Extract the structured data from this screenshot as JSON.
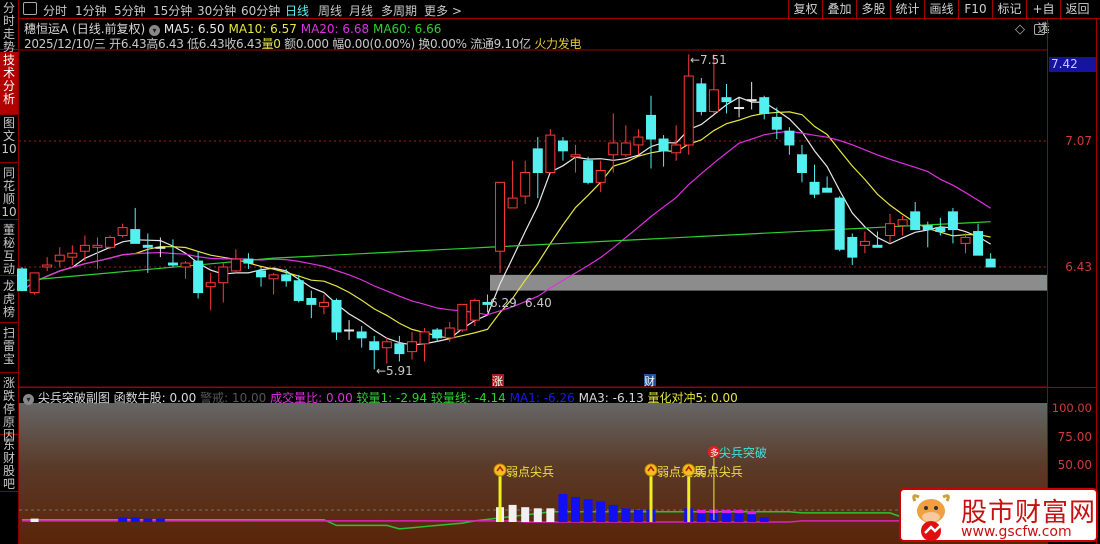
{
  "sidebar": {
    "items": [
      {
        "label": "分时走势",
        "active": false
      },
      {
        "label": "技术分析",
        "active": true
      },
      {
        "label": "图文10",
        "active": false
      },
      {
        "label": "同花顺10",
        "active": false
      },
      {
        "label": "董秘互动",
        "active": false
      },
      {
        "label": "龙虎榜",
        "active": false
      },
      {
        "label": "扫雷宝",
        "active": false
      },
      {
        "label": "涨跌停原因",
        "active": false
      },
      {
        "label": "东财股吧",
        "active": false
      }
    ]
  },
  "toolbar": {
    "periods": [
      "分时",
      "1分钟",
      "5分钟",
      "15分钟",
      "30分钟",
      "60分钟",
      "日线",
      "周线",
      "月线",
      "多周期",
      "更多 >"
    ],
    "active_period": "日线",
    "right_buttons": [
      "复权",
      "叠加",
      "多股",
      "统计",
      "画线",
      "F10",
      "标记",
      "+自选",
      "返回"
    ]
  },
  "header": {
    "stock": "穗恒运A (日线.前复权)",
    "ma5": "MA5: 6.50",
    "ma10": "MA10: 6.57",
    "ma20": "MA20: 6.68",
    "ma60": "MA60: 6.66",
    "date": "2025/12/10/三",
    "open": "开6.43",
    "high": "高6.43",
    "low": "低6.43",
    "close": "收6.43",
    "vol_label": "量",
    "vol_value": "0",
    "amount": "额0.000",
    "range": "幅0.00(0.00%)",
    "turnover": "换0.00%",
    "float": "流通9.10亿",
    "concept": "火力发电"
  },
  "colors": {
    "up": "#ff3a3a",
    "down": "#54f0f0",
    "ma5": "#e8e8e8",
    "ma10": "#e6e640",
    "ma20": "#e030e0",
    "ma60": "#30d030"
  },
  "price_axis": {
    "current": "7.42",
    "levels": [
      "7.07",
      "6.43"
    ]
  },
  "annotations": {
    "low": "5.91",
    "high": "7.51",
    "a": "6.29",
    "b": "6.40",
    "mark_zhang": "涨",
    "mark_cai": "财"
  },
  "chart_data": {
    "type": "candlestick",
    "price_axis_labels": [
      7.42,
      7.07,
      6.43
    ],
    "ohlc": [
      [
        6.42,
        6.43,
        6.31,
        6.31
      ],
      [
        6.3,
        6.4,
        6.29,
        6.4
      ],
      [
        6.43,
        6.48,
        6.41,
        6.44
      ],
      [
        6.46,
        6.53,
        6.43,
        6.49
      ],
      [
        6.48,
        6.54,
        6.44,
        6.5
      ],
      [
        6.51,
        6.59,
        6.46,
        6.54
      ],
      [
        6.53,
        6.58,
        6.42,
        6.54
      ],
      [
        6.53,
        6.59,
        6.52,
        6.58
      ],
      [
        6.59,
        6.65,
        6.58,
        6.63
      ],
      [
        6.62,
        6.73,
        6.55,
        6.55
      ],
      [
        6.54,
        6.6,
        6.4,
        6.53
      ],
      [
        6.53,
        6.58,
        6.48,
        6.53
      ],
      [
        6.45,
        6.57,
        6.43,
        6.44
      ],
      [
        6.43,
        6.46,
        6.37,
        6.45
      ],
      [
        6.46,
        6.51,
        6.27,
        6.3
      ],
      [
        6.33,
        6.4,
        6.21,
        6.35
      ],
      [
        6.35,
        6.45,
        6.25,
        6.43
      ],
      [
        6.41,
        6.52,
        6.4,
        6.47
      ],
      [
        6.47,
        6.5,
        6.42,
        6.45
      ],
      [
        6.41,
        6.43,
        6.33,
        6.38
      ],
      [
        6.37,
        6.4,
        6.29,
        6.39
      ],
      [
        6.39,
        6.42,
        6.33,
        6.36
      ],
      [
        6.36,
        6.39,
        6.25,
        6.26
      ],
      [
        6.27,
        6.31,
        6.17,
        6.24
      ],
      [
        6.23,
        6.29,
        6.19,
        6.25
      ],
      [
        6.26,
        6.27,
        6.06,
        6.1
      ],
      [
        6.11,
        6.16,
        6.06,
        6.11
      ],
      [
        6.1,
        6.13,
        6.02,
        6.07
      ],
      [
        6.05,
        6.08,
        5.91,
        6.01
      ],
      [
        6.02,
        6.07,
        5.94,
        6.05
      ],
      [
        6.04,
        6.08,
        5.95,
        5.99
      ],
      [
        6.0,
        6.1,
        5.96,
        6.05
      ],
      [
        6.04,
        6.12,
        5.95,
        6.1
      ],
      [
        6.11,
        6.12,
        6.05,
        6.07
      ],
      [
        6.07,
        6.15,
        6.05,
        6.12
      ],
      [
        6.11,
        6.24,
        6.1,
        6.24
      ],
      [
        6.16,
        6.27,
        6.13,
        6.26
      ],
      [
        6.25,
        6.29,
        6.2,
        6.24
      ],
      [
        6.51,
        6.86,
        6.4,
        6.86
      ],
      [
        6.73,
        6.97,
        6.73,
        6.78
      ],
      [
        6.79,
        6.97,
        6.75,
        6.91
      ],
      [
        7.03,
        7.09,
        6.78,
        6.91
      ],
      [
        6.91,
        7.13,
        6.91,
        7.1
      ],
      [
        7.07,
        7.09,
        6.97,
        7.02
      ],
      [
        6.99,
        7.05,
        6.91,
        7.0
      ],
      [
        6.97,
        6.99,
        6.85,
        6.86
      ],
      [
        6.86,
        6.97,
        6.81,
        6.92
      ],
      [
        7.0,
        7.21,
        6.91,
        7.06
      ],
      [
        7.0,
        7.15,
        6.99,
        7.06
      ],
      [
        7.05,
        7.13,
        7.0,
        7.09
      ],
      [
        7.2,
        7.3,
        6.93,
        7.08
      ],
      [
        7.08,
        7.1,
        6.94,
        7.02
      ],
      [
        7.01,
        7.15,
        6.97,
        7.05
      ],
      [
        7.05,
        7.51,
        7.0,
        7.4
      ],
      [
        7.36,
        7.39,
        7.2,
        7.22
      ],
      [
        7.22,
        7.51,
        7.21,
        7.33
      ],
      [
        7.29,
        7.36,
        7.21,
        7.27
      ],
      [
        7.24,
        7.29,
        7.19,
        7.24
      ],
      [
        7.28,
        7.37,
        7.23,
        7.28
      ],
      [
        7.29,
        7.3,
        7.18,
        7.21
      ],
      [
        7.19,
        7.24,
        7.08,
        7.13
      ],
      [
        7.12,
        7.14,
        7.0,
        7.05
      ],
      [
        7.0,
        7.05,
        6.86,
        6.91
      ],
      [
        6.86,
        6.95,
        6.78,
        6.8
      ],
      [
        6.83,
        6.89,
        6.81,
        6.81
      ],
      [
        6.78,
        6.79,
        6.51,
        6.52
      ],
      [
        6.58,
        6.6,
        6.44,
        6.48
      ],
      [
        6.54,
        6.61,
        6.5,
        6.56
      ],
      [
        6.54,
        6.61,
        6.53,
        6.53
      ],
      [
        6.59,
        6.7,
        6.55,
        6.65
      ],
      [
        6.64,
        6.69,
        6.59,
        6.67
      ],
      [
        6.71,
        6.76,
        6.62,
        6.62
      ],
      [
        6.64,
        6.66,
        6.53,
        6.62
      ],
      [
        6.63,
        6.68,
        6.59,
        6.61
      ],
      [
        6.71,
        6.73,
        6.55,
        6.62
      ],
      [
        6.55,
        6.6,
        6.5,
        6.58
      ],
      [
        6.61,
        6.65,
        6.49,
        6.49
      ],
      [
        6.47,
        6.5,
        6.43,
        6.43
      ]
    ],
    "ma_periods": [
      5,
      10,
      20,
      60
    ],
    "support_zone": [
      6.31,
      6.39
    ]
  },
  "sub": {
    "title": "尖兵突破副图",
    "f1": "函数牛股: 0.00",
    "f2": "警戒: 10.00",
    "f3": "成交量比: 0.00",
    "f4": "较量1: -2.94",
    "f5": "较量线: -4.14",
    "f6": "MA1: -6.26",
    "f7": "MA3: -6.13",
    "f8": "量化对冲5: 0.00",
    "axis": [
      "100.00",
      "75.00",
      "50.00"
    ],
    "signal_label": "弱点尖兵",
    "breakout_label": "尖兵突破",
    "breakout_badge": "多",
    "chart_data": {
      "type": "bar",
      "ylim": [
        0,
        100
      ],
      "white_bars": {
        "1": 3,
        "38": 13,
        "39": 15,
        "40": 13,
        "41": 12,
        "42": 12
      },
      "blue_bars": {
        "8": 4,
        "9": 4,
        "10": 3,
        "11": 3,
        "43": 24.5,
        "44": 22,
        "45": 20,
        "46": 18,
        "47": 15,
        "48": 12,
        "49": 10.5,
        "50": 11,
        "53": 12,
        "54": 10.5,
        "55": 10.5,
        "56": 10.5,
        "57": 10.5,
        "58": 9.5,
        "59": 4
      },
      "signals": [
        38,
        50,
        53
      ],
      "breakout": 55
    }
  },
  "logo": {
    "name": "股市财富网",
    "url": "www.gscfw.com"
  }
}
